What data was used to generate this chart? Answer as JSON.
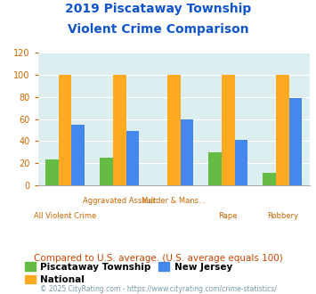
{
  "title_line1": "2019 Piscataway Township",
  "title_line2": "Violent Crime Comparison",
  "piscataway": [
    23,
    25,
    0,
    30,
    11
  ],
  "national": [
    100,
    100,
    100,
    100,
    100
  ],
  "new_jersey": [
    55,
    49,
    60,
    41,
    79
  ],
  "colors": {
    "piscataway": "#66bb44",
    "national": "#ffaa22",
    "new_jersey": "#4488ee"
  },
  "ylim": [
    0,
    120
  ],
  "yticks": [
    0,
    20,
    40,
    60,
    80,
    100,
    120
  ],
  "plot_bg": "#ddeef0",
  "title_color": "#1155cc",
  "tick_color": "#cc6600",
  "note_text": "Compared to U.S. average. (U.S. average equals 100)",
  "note_color": "#cc4400",
  "footer_text": "© 2025 CityRating.com - https://www.cityrating.com/crime-statistics/",
  "footer_color": "#7799aa",
  "legend_labels": [
    "Piscataway Township",
    "National",
    "New Jersey"
  ],
  "grid_color": "#ffffff",
  "xlabels_top": [
    "",
    "Aggravated Assault",
    "Murder & Mans...",
    "",
    ""
  ],
  "xlabels_bot": [
    "All Violent Crime",
    "",
    "",
    "Rape",
    "Robbery"
  ]
}
